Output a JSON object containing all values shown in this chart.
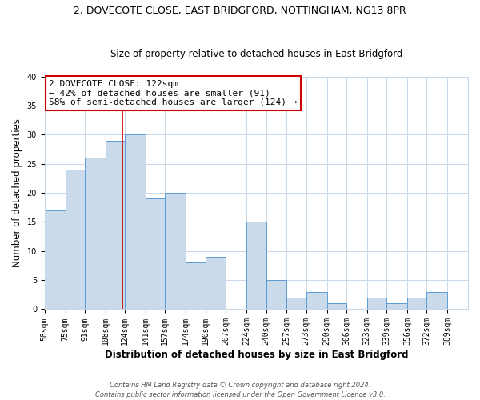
{
  "title_line1": "2, DOVECOTE CLOSE, EAST BRIDGFORD, NOTTINGHAM, NG13 8PR",
  "title_line2": "Size of property relative to detached houses in East Bridgford",
  "xlabel": "Distribution of detached houses by size in East Bridgford",
  "ylabel": "Number of detached properties",
  "footer_line1": "Contains HM Land Registry data © Crown copyright and database right 2024.",
  "footer_line2": "Contains public sector information licensed under the Open Government Licence v3.0.",
  "annotation_line1": "2 DOVECOTE CLOSE: 122sqm",
  "annotation_line2": "← 42% of detached houses are smaller (91)",
  "annotation_line3": "58% of semi-detached houses are larger (124) →",
  "bin_edges": [
    58,
    75,
    91,
    108,
    124,
    141,
    157,
    174,
    190,
    207,
    224,
    240,
    257,
    273,
    290,
    306,
    323,
    339,
    356,
    372,
    389
  ],
  "bar_heights": [
    17,
    24,
    26,
    29,
    30,
    19,
    20,
    8,
    9,
    0,
    15,
    5,
    2,
    3,
    1,
    0,
    2,
    1,
    2,
    3
  ],
  "bar_color": "#c9daea",
  "bar_edge_color": "#5b9bd5",
  "vline_x": 122,
  "vline_color": "#cc0000",
  "ylim": [
    0,
    40
  ],
  "xlim": [
    58,
    406
  ],
  "xtick_labels": [
    "58sqm",
    "75sqm",
    "91sqm",
    "108sqm",
    "124sqm",
    "141sqm",
    "157sqm",
    "174sqm",
    "190sqm",
    "207sqm",
    "224sqm",
    "240sqm",
    "257sqm",
    "273sqm",
    "290sqm",
    "306sqm",
    "323sqm",
    "339sqm",
    "356sqm",
    "372sqm",
    "389sqm"
  ],
  "xtick_positions": [
    58,
    75,
    91,
    108,
    124,
    141,
    157,
    174,
    190,
    207,
    224,
    240,
    257,
    273,
    290,
    306,
    323,
    339,
    356,
    372,
    389
  ],
  "grid_color": "#c8d8e8",
  "title_fontsize": 9,
  "subtitle_fontsize": 8.5,
  "axis_label_fontsize": 8.5,
  "tick_fontsize": 7,
  "annotation_fontsize": 8,
  "footer_fontsize": 6
}
